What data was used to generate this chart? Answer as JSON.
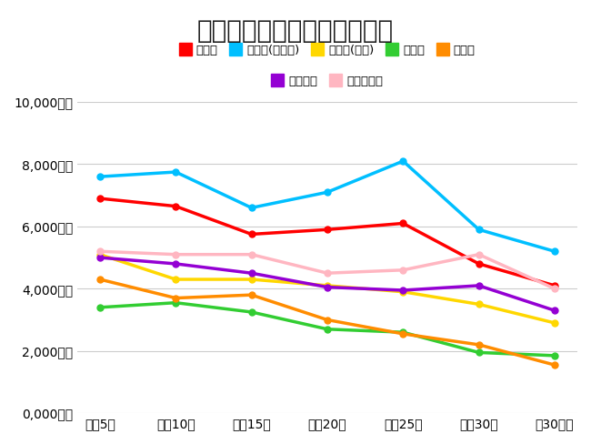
{
  "title": "戸建て住宅の売却価格の相場",
  "x_labels": [
    "〜築5年",
    "〜築10年",
    "〜築15年",
    "〜築20年",
    "〜築25年",
    "〜築30年",
    "築30年〜"
  ],
  "series": [
    {
      "name": "東京都",
      "color": "#ff0000",
      "values": [
        6900,
        6650,
        5750,
        5900,
        6100,
        4800,
        4100
      ]
    },
    {
      "name": "東京都(都区部)",
      "color": "#00bfff",
      "values": [
        7600,
        7750,
        6600,
        7100,
        8100,
        5900,
        5200
      ]
    },
    {
      "name": "東京都(多摩)",
      "color": "#ffd700",
      "values": [
        5100,
        4300,
        4300,
        4100,
        3900,
        3500,
        2900
      ]
    },
    {
      "name": "埼玉県",
      "color": "#32cd32",
      "values": [
        3400,
        3550,
        3250,
        2700,
        2600,
        1950,
        1850
      ]
    },
    {
      "name": "千葉県",
      "color": "#ff8c00",
      "values": [
        4300,
        3700,
        3800,
        3000,
        2550,
        2200,
        1550
      ]
    },
    {
      "name": "神奈川県",
      "color": "#9400d3",
      "values": [
        5000,
        4800,
        4500,
        4050,
        3950,
        4100,
        3300
      ]
    },
    {
      "name": "横浜・川崎",
      "color": "#ffb6c1",
      "values": [
        5200,
        5100,
        5100,
        4500,
        4600,
        5100,
        4000
      ]
    }
  ],
  "ylim": [
    0,
    10000
  ],
  "yticks": [
    0,
    2000,
    4000,
    6000,
    8000,
    10000
  ],
  "ytick_labels": [
    "0,000万円",
    "2,000万円",
    "4,000万円",
    "6,000万円",
    "8,000万円",
    "10,000万円"
  ],
  "background_color": "#ffffff",
  "legend_row1": [
    "東京都",
    "東京都(都区部)",
    "東京都(多摩)",
    "埼玉県",
    "千葉県"
  ],
  "legend_row2": [
    "神奈川県",
    "横浜・川崎"
  ]
}
